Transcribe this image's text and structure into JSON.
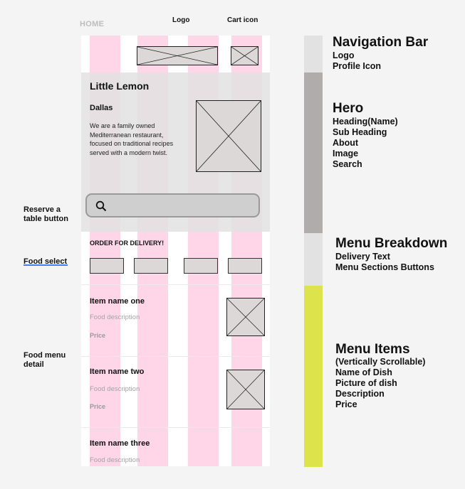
{
  "header": {
    "home": "HOME",
    "logo_label": "Logo",
    "cart_label": "Cart icon"
  },
  "hero": {
    "title": "Little Lemon",
    "subtitle": "Dallas",
    "about": "We are a family owned Mediterranean restaurant, focused on traditional recipes served with a modern twist."
  },
  "delivery": {
    "text": "ORDER FOR DELIVERY!"
  },
  "items": [
    {
      "name": "Item name one",
      "description": "Food description",
      "price": "Price"
    },
    {
      "name": "Item name two",
      "description": "Food description",
      "price": "Price"
    },
    {
      "name": "Item name three",
      "description": "Food description"
    }
  ],
  "side_labels": {
    "reserve": "Reserve a table button",
    "food_select": "Food select",
    "food_detail": "Food menu detail"
  },
  "sections": [
    {
      "title": "Navigation Bar",
      "lines": [
        "Logo",
        "Profile Icon"
      ]
    },
    {
      "title": "Hero",
      "lines": [
        "Heading(Name)",
        "Sub Heading",
        "About",
        "Image",
        "Search"
      ]
    },
    {
      "title": "Menu Breakdown",
      "lines": [
        "Delivery Text",
        "Menu Sections Buttons"
      ]
    },
    {
      "title": "Menu Items",
      "lines": [
        "(Vertically Scrollable)",
        "Name of Dish",
        "Picture of dish",
        "Description",
        "Price"
      ]
    }
  ],
  "colors": {
    "column": "#ffd6e8",
    "bar_nav": "#e2e2e2",
    "bar_hero": "#b0acac",
    "bar_menu": "#e2e2e2",
    "bar_items": "#dde34a",
    "underline": "#3b82f6"
  },
  "icons": {
    "search": "search-icon",
    "placeholder": "image-placeholder-icon"
  }
}
